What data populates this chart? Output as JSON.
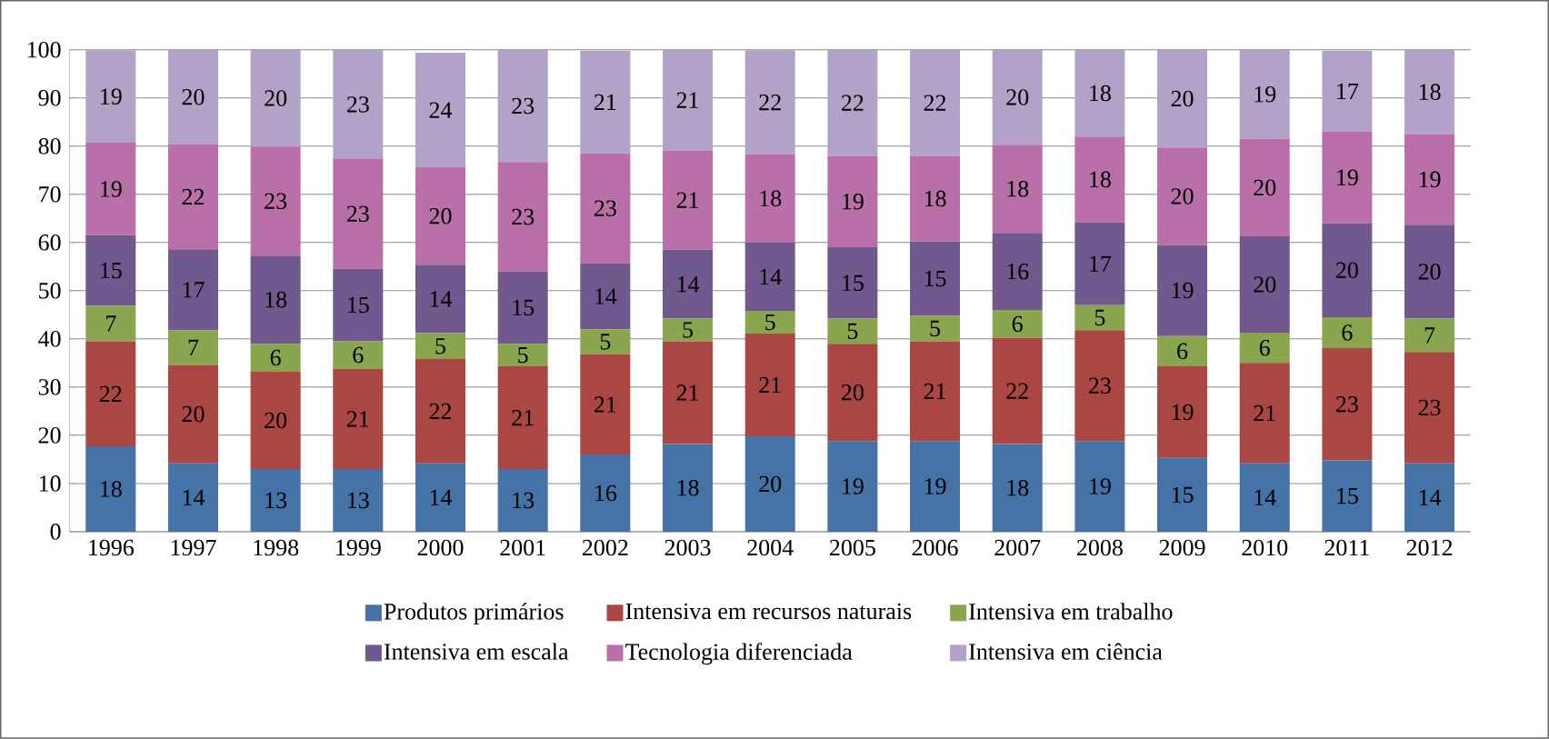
{
  "chart_data": {
    "type": "bar",
    "stacked": true,
    "categories": [
      "1996",
      "1997",
      "1998",
      "1999",
      "2000",
      "2001",
      "2002",
      "2003",
      "2004",
      "2005",
      "2006",
      "2007",
      "2008",
      "2009",
      "2010",
      "2011",
      "2012"
    ],
    "series": [
      {
        "name": "Produtos primários",
        "color": "#4572a7",
        "values": [
          17.7,
          14.2,
          13,
          13,
          14.2,
          13,
          16,
          18.2,
          19.8,
          18.8,
          18.8,
          18.2,
          18.8,
          15.3,
          14.2,
          14.8,
          14.2
        ],
        "value_labels": [
          "18",
          "14",
          "13",
          "13",
          "14",
          "13",
          "16",
          "18",
          "20",
          "19",
          "19",
          "18",
          "19",
          "15",
          "14",
          "15",
          "14"
        ]
      },
      {
        "name": "Intensiva em recursos naturais",
        "color": "#aa4643",
        "values": [
          21.8,
          20.4,
          20.2,
          20.8,
          21.6,
          21.3,
          20.8,
          21.3,
          21.3,
          20.2,
          20.7,
          22,
          23,
          19,
          20.8,
          23.3,
          23.1
        ],
        "value_labels": [
          "22",
          "20",
          "20",
          "21",
          "22",
          "21",
          "21",
          "21",
          "21",
          "20",
          "21",
          "22",
          "23",
          "19",
          "21",
          "23",
          "23"
        ]
      },
      {
        "name": "Intensiva em trabalho",
        "color": "#89a54e",
        "values": [
          7.4,
          7.2,
          5.8,
          5.7,
          5.4,
          4.7,
          5.2,
          4.7,
          4.7,
          5.2,
          5.3,
          5.8,
          5.2,
          6.3,
          6.3,
          6.4,
          6.9
        ],
        "value_labels": [
          "7",
          "7",
          "6",
          "6",
          "5",
          "5",
          "5",
          "5",
          "5",
          "5",
          "5",
          "6",
          "5",
          "6",
          "6",
          "6",
          "7"
        ]
      },
      {
        "name": "Intensiva em escala",
        "color": "#71588f",
        "values": [
          14.6,
          16.8,
          18.3,
          15.1,
          14.2,
          15,
          13.7,
          14.3,
          14.2,
          14.8,
          15.4,
          16,
          17.2,
          18.9,
          20,
          19.5,
          19.5
        ],
        "value_labels": [
          "15",
          "17",
          "18",
          "15",
          "14",
          "15",
          "14",
          "14",
          "14",
          "15",
          "15",
          "16",
          "17",
          "19",
          "20",
          "20",
          "20"
        ]
      },
      {
        "name": "Tecnologia diferenciada",
        "color": "#b970a8",
        "values": [
          19.2,
          21.8,
          22.6,
          22.7,
          20.2,
          22.7,
          22.8,
          20.6,
          18.3,
          19,
          17.8,
          18.3,
          17.8,
          20.2,
          20.2,
          19,
          18.8
        ],
        "value_labels": [
          "19",
          "22",
          "23",
          "23",
          "20",
          "23",
          "23",
          "21",
          "18",
          "19",
          "18",
          "18",
          "18",
          "20",
          "20",
          "19",
          "19"
        ]
      },
      {
        "name": "Intensiva em ciência",
        "color": "#b3a2c7",
        "values": [
          19.2,
          19.6,
          20.1,
          22.7,
          23.8,
          23.3,
          21.3,
          20.9,
          21.6,
          22,
          22,
          19.7,
          18,
          20.3,
          18.5,
          16.8,
          17.5
        ],
        "value_labels": [
          "19",
          "20",
          "20",
          "23",
          "24",
          "23",
          "21",
          "21",
          "22",
          "22",
          "22",
          "20",
          "18",
          "20",
          "19",
          "17",
          "18"
        ]
      }
    ],
    "ylim": [
      0,
      100
    ],
    "yticks": [
      0,
      10,
      20,
      30,
      40,
      50,
      60,
      70,
      80,
      90,
      100
    ],
    "grid": "y",
    "legend": "bottom"
  }
}
